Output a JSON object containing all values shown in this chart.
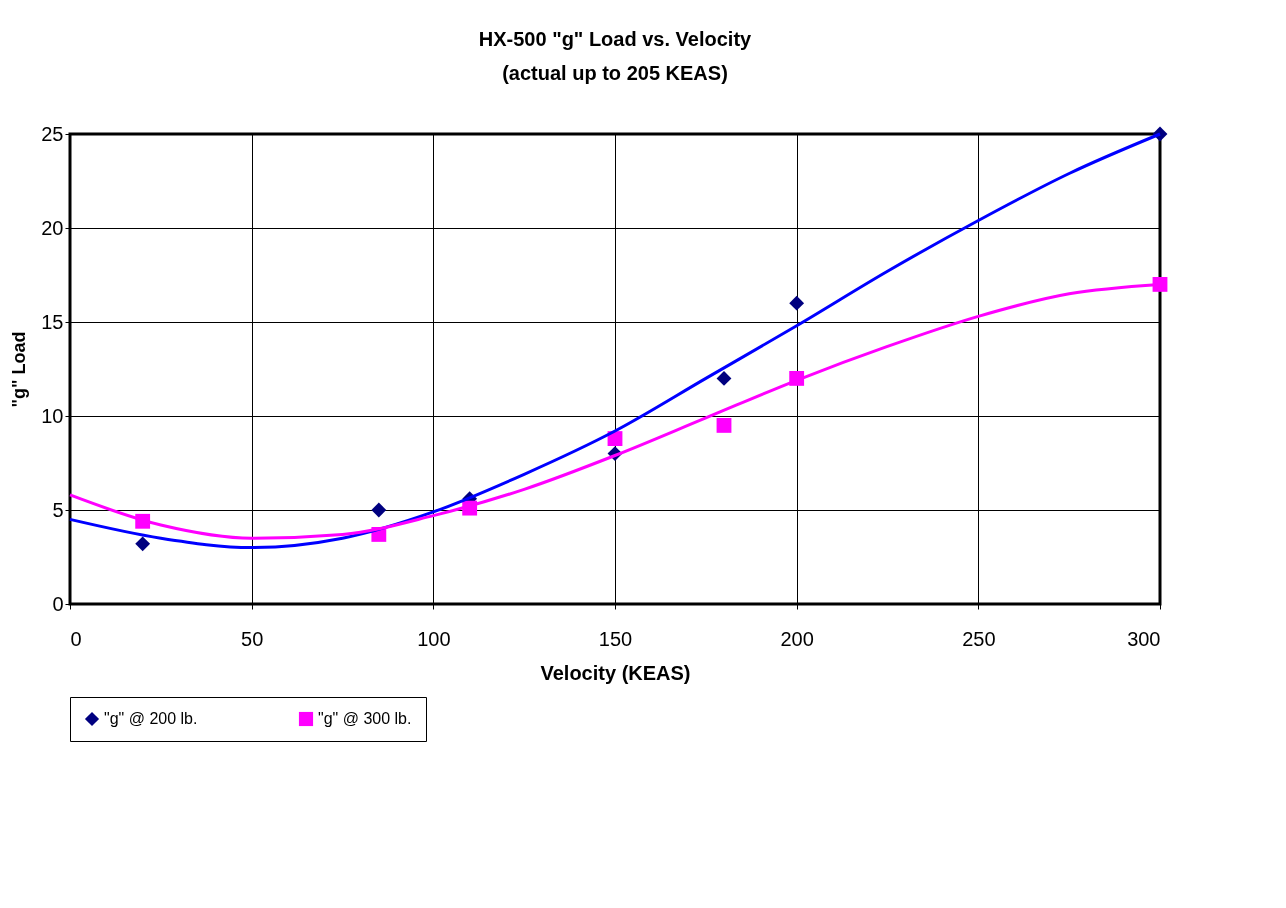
{
  "chart_data": {
    "type": "scatter",
    "title": "HX-500 \"g\" Load vs. Velocity",
    "subtitle": "(actual up to 205 KEAS)",
    "xlabel": "Velocity (KEAS)",
    "ylabel": "\"g\" Load",
    "x": [
      20,
      85,
      110,
      150,
      180,
      200,
      300
    ],
    "series": [
      {
        "name": "\"g\" @ 200 lb.",
        "color": "#000080",
        "marker": "diamond",
        "values": [
          3.2,
          5.0,
          5.6,
          8.0,
          12.0,
          16.0,
          25.0
        ]
      },
      {
        "name": "\"g\" @ 300 lb.",
        "color": "#ff00ff",
        "marker": "square",
        "values": [
          4.4,
          3.7,
          5.1,
          8.8,
          9.5,
          12.0,
          17.0
        ]
      },
      {
        "type": "line",
        "color": "#0000ff",
        "x": [
          0,
          25,
          50,
          75,
          100,
          125,
          150,
          175,
          200,
          225,
          250,
          275,
          300
        ],
        "values": [
          4.5,
          3.5,
          3.0,
          3.5,
          4.9,
          6.9,
          9.2,
          12.0,
          14.8,
          17.7,
          20.4,
          22.9,
          25.0
        ]
      },
      {
        "type": "line",
        "color": "#ff00ff",
        "x": [
          0,
          25,
          50,
          75,
          100,
          125,
          150,
          175,
          200,
          225,
          250,
          275,
          300
        ],
        "values": [
          5.8,
          4.2,
          3.5,
          3.7,
          4.7,
          6.1,
          7.9,
          9.9,
          11.9,
          13.7,
          15.3,
          16.5,
          17.0
        ]
      }
    ],
    "xlim": [
      0,
      300
    ],
    "ylim": [
      0,
      25
    ],
    "xticks": [
      0,
      50,
      100,
      150,
      200,
      250,
      300
    ],
    "yticks": [
      0,
      5,
      10,
      15,
      20,
      25
    ],
    "grid": true,
    "legend": "bottom"
  }
}
